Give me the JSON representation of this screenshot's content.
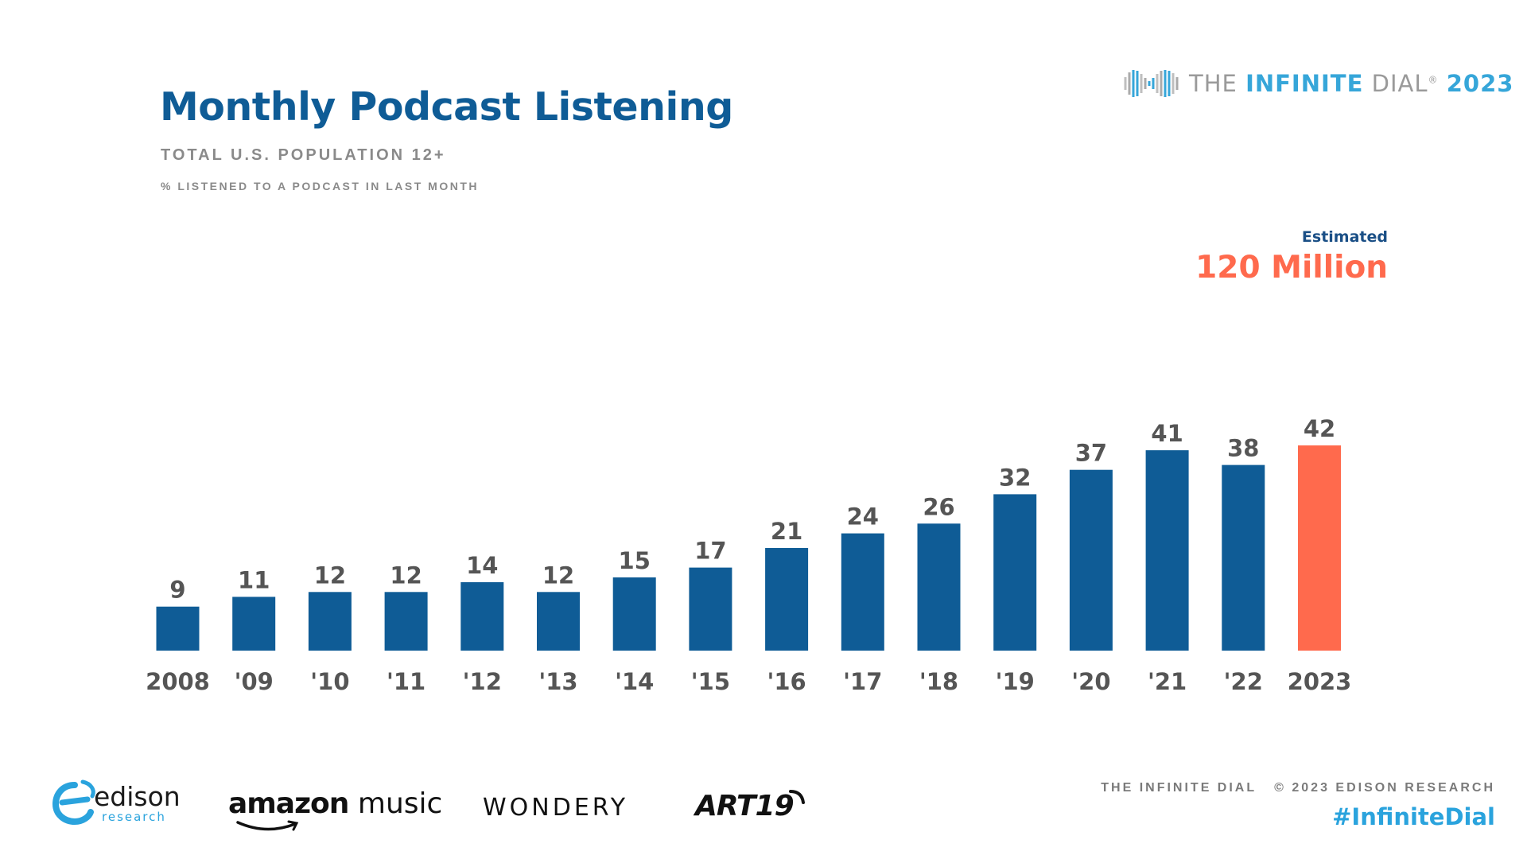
{
  "header": {
    "title": "Monthly Podcast Listening",
    "subtitle": "TOTAL U.S. POPULATION 12+",
    "subnote": "% LISTENED TO A PODCAST IN LAST MONTH"
  },
  "brand": {
    "the": "THE ",
    "infinite": "INFINITE",
    "dial": " DIAL",
    "reg": "®",
    "year": "2023"
  },
  "callout": {
    "label": "Estimated",
    "value": "120 Million"
  },
  "chart_data": {
    "type": "bar",
    "categories": [
      "2008",
      "'09",
      "'10",
      "'11",
      "'12",
      "'13",
      "'14",
      "'15",
      "'16",
      "'17",
      "'18",
      "'19",
      "'20",
      "'21",
      "'22",
      "2023"
    ],
    "values": [
      9,
      11,
      12,
      12,
      14,
      12,
      15,
      17,
      21,
      24,
      26,
      32,
      37,
      41,
      38,
      42
    ],
    "ylim": [
      0,
      42
    ],
    "grid": false,
    "colors": {
      "default": "#0f5c96",
      "highlight": "#ff6a4d"
    },
    "highlight_index": 15
  },
  "logos": {
    "edison_word": "edison",
    "edison_sub": "research",
    "amazon_bold": "amazon",
    "amazon_rest": "music",
    "wondery": "WONDERY",
    "art19": "ART19"
  },
  "footer": {
    "left": "THE INFINITE DIAL",
    "copyright": "© 2023 EDISON RESEARCH",
    "hashtag": "#InfiniteDial"
  }
}
